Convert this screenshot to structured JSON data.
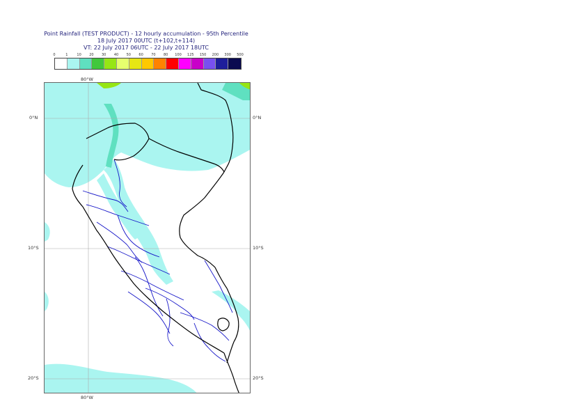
{
  "header": {
    "line1": "Point Rainfall (TEST PRODUCT) - 12 hourly accumulation - 95th Percentile",
    "line2": "18 July 2017 00UTC (t+102,t+114)",
    "line3": "VT: 22 July 2017 06UTC - 22 July 2017 18UTC"
  },
  "legend": {
    "ticks": [
      "0",
      "1",
      "10",
      "20",
      "30",
      "40",
      "50",
      "60",
      "70",
      "80",
      "100",
      "125",
      "150",
      "200",
      "300",
      "500"
    ],
    "colors": [
      "#ffffff",
      "#aaf5f0",
      "#5fe0c0",
      "#40c83c",
      "#96e614",
      "#e6ff6e",
      "#e6e614",
      "#ffc800",
      "#ff8200",
      "#ff0000",
      "#ff00ff",
      "#c800c8",
      "#7850f0",
      "#1e1e9b",
      "#0a0a50"
    ]
  },
  "map": {
    "lon_label_top": "80°W",
    "lon_label_bottom": "80°W",
    "lat_labels": [
      {
        "text": "0°N"
      },
      {
        "text": "10°S"
      },
      {
        "text": "20°S"
      }
    ],
    "country_border_color": "#000000",
    "admin_border_color": "#1414c8",
    "rain_light_color": "#aaf5f0",
    "rain_med_color": "#5fe0c0",
    "rain_heavy_color": "#96e614"
  }
}
